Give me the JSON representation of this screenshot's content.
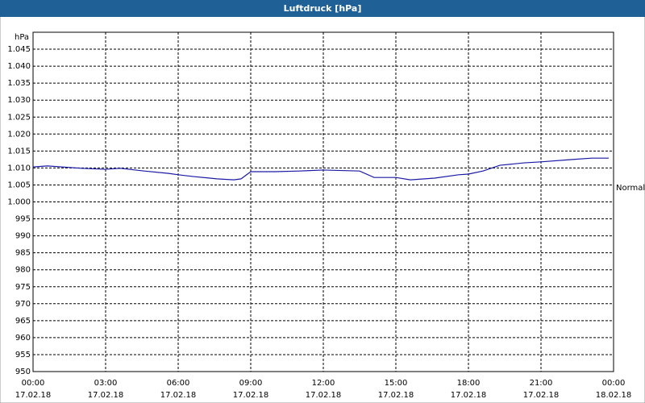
{
  "chart_data": {
    "type": "line",
    "title": "Luftdruck [hPa]",
    "y_label": "hPa",
    "x": [
      0,
      0.6,
      2,
      3,
      3.6,
      4.6,
      5.6,
      6,
      6.6,
      7.6,
      8.3,
      8.6,
      9,
      10,
      11,
      12,
      13.5,
      14.1,
      15,
      15.6,
      16.6,
      17.6,
      18,
      18.6,
      19.3,
      20.3,
      21,
      22.3,
      23.1,
      23.8
    ],
    "series": [
      {
        "name": "Normal",
        "color": "#1a1aa6",
        "values": [
          1010.3,
          1010.6,
          1009.9,
          1009.6,
          1009.9,
          1009.1,
          1008.4,
          1008.0,
          1007.5,
          1006.8,
          1006.5,
          1006.8,
          1008.9,
          1008.9,
          1009.1,
          1009.4,
          1009.1,
          1007.2,
          1007.2,
          1006.5,
          1007.0,
          1008.0,
          1008.2,
          1009.1,
          1010.8,
          1011.5,
          1011.8,
          1012.5,
          1012.9,
          1012.9
        ]
      }
    ],
    "xlim": [
      0,
      24
    ],
    "xticks": [
      {
        "value": 0,
        "label": "00:00",
        "date": "17.02.18"
      },
      {
        "value": 3,
        "label": "03:00",
        "date": "17.02.18"
      },
      {
        "value": 6,
        "label": "06:00",
        "date": "17.02.18"
      },
      {
        "value": 9,
        "label": "09:00",
        "date": "17.02.18"
      },
      {
        "value": 12,
        "label": "12:00",
        "date": "17.02.18"
      },
      {
        "value": 15,
        "label": "15:00",
        "date": "17.02.18"
      },
      {
        "value": 18,
        "label": "18:00",
        "date": "17.02.18"
      },
      {
        "value": 21,
        "label": "21:00",
        "date": "17.02.18"
      },
      {
        "value": 24,
        "label": "00:00",
        "date": "18.02.18"
      }
    ],
    "ylim": [
      950,
      1050
    ],
    "yticks": [
      950,
      955,
      960,
      965,
      970,
      975,
      980,
      985,
      990,
      995,
      {
        "value": 1000,
        "label": "1.000"
      },
      {
        "value": 1005,
        "label": "1.005"
      },
      {
        "value": 1010,
        "label": "1.010"
      },
      {
        "value": 1015,
        "label": "1.015"
      },
      {
        "value": 1020,
        "label": "1.020"
      },
      {
        "value": 1025,
        "label": "1.025"
      },
      {
        "value": 1030,
        "label": "1.030"
      },
      {
        "value": 1035,
        "label": "1.035"
      },
      {
        "value": 1040,
        "label": "1.040"
      },
      {
        "value": 1045,
        "label": "1.045"
      }
    ],
    "grid": true
  }
}
